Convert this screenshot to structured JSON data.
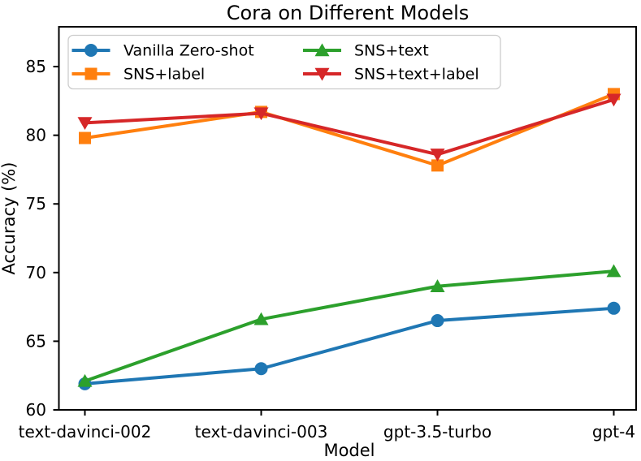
{
  "figure": {
    "title": "Cora on Different Models",
    "xlabel": "Model",
    "ylabel": "Accuracy (%)"
  },
  "chart_data": {
    "type": "line",
    "title": "Cora on Different Models",
    "xlabel": "Model",
    "ylabel": "Accuracy (%)",
    "categories": [
      "text-davinci-002",
      "text-davinci-003",
      "gpt-3.5-turbo",
      "gpt-4"
    ],
    "yticks": [
      60,
      65,
      70,
      75,
      80,
      85
    ],
    "ylim": [
      60,
      87.9
    ],
    "grid": false,
    "legend": {
      "position": "upper-left",
      "columns": 2,
      "fill_order": "column-major",
      "entries": [
        "Vanilla Zero-shot",
        "SNS+label",
        "SNS+text",
        "SNS+text+label"
      ]
    },
    "series": [
      {
        "name": "Vanilla Zero-shot",
        "marker": "circle",
        "color": "#1f77b4",
        "values": [
          61.9,
          63.0,
          66.5,
          67.4
        ]
      },
      {
        "name": "SNS+label",
        "marker": "square",
        "color": "#ff7f0e",
        "values": [
          79.8,
          81.7,
          77.8,
          83.0
        ]
      },
      {
        "name": "SNS+text",
        "marker": "triangle-up",
        "color": "#2ca02c",
        "values": [
          62.1,
          66.6,
          69.0,
          70.1
        ]
      },
      {
        "name": "SNS+text+label",
        "marker": "triangle-down",
        "color": "#d62728",
        "values": [
          80.9,
          81.6,
          78.6,
          82.6
        ]
      }
    ],
    "axis_color": "#000000",
    "legend_border_color": "#cccccc"
  }
}
